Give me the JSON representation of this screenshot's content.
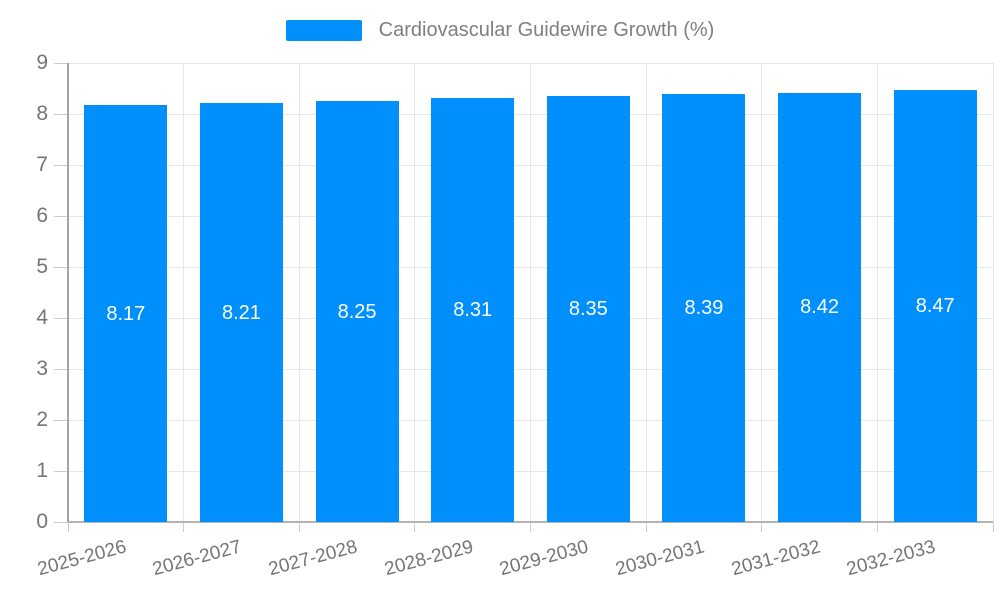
{
  "legend": {
    "label": "Cardiovascular Guidewire Growth (%)"
  },
  "chart_data": {
    "type": "bar",
    "title": "Cardiovascular Guidewire Growth (%)",
    "categories": [
      "2025-2026",
      "2026-2027",
      "2027-2028",
      "2028-2029",
      "2029-2030",
      "2030-2031",
      "2031-2032",
      "2032-2033"
    ],
    "values": [
      8.17,
      8.21,
      8.25,
      8.31,
      8.35,
      8.39,
      8.42,
      8.47
    ],
    "value_labels": [
      "8.17",
      "8.21",
      "8.25",
      "8.31",
      "8.35",
      "8.39",
      "8.42",
      "8.47"
    ],
    "xlabel": "",
    "ylabel": "",
    "ylim": [
      0,
      9
    ],
    "yticks": [
      0,
      1,
      2,
      3,
      4,
      5,
      6,
      7,
      8,
      9
    ],
    "grid": true,
    "legend_position": "top",
    "x_label_rotation_deg": -15,
    "colors": {
      "bar": "#008FFB",
      "value_label": "#ffffff",
      "axis_labels": "#757575",
      "legend_text": "#7f7f7f",
      "gridline": "#e7e7e7",
      "axis_line": "#b3b3b3",
      "y_axis_line": "#a5a5a5",
      "tick": "#cccccc"
    }
  }
}
